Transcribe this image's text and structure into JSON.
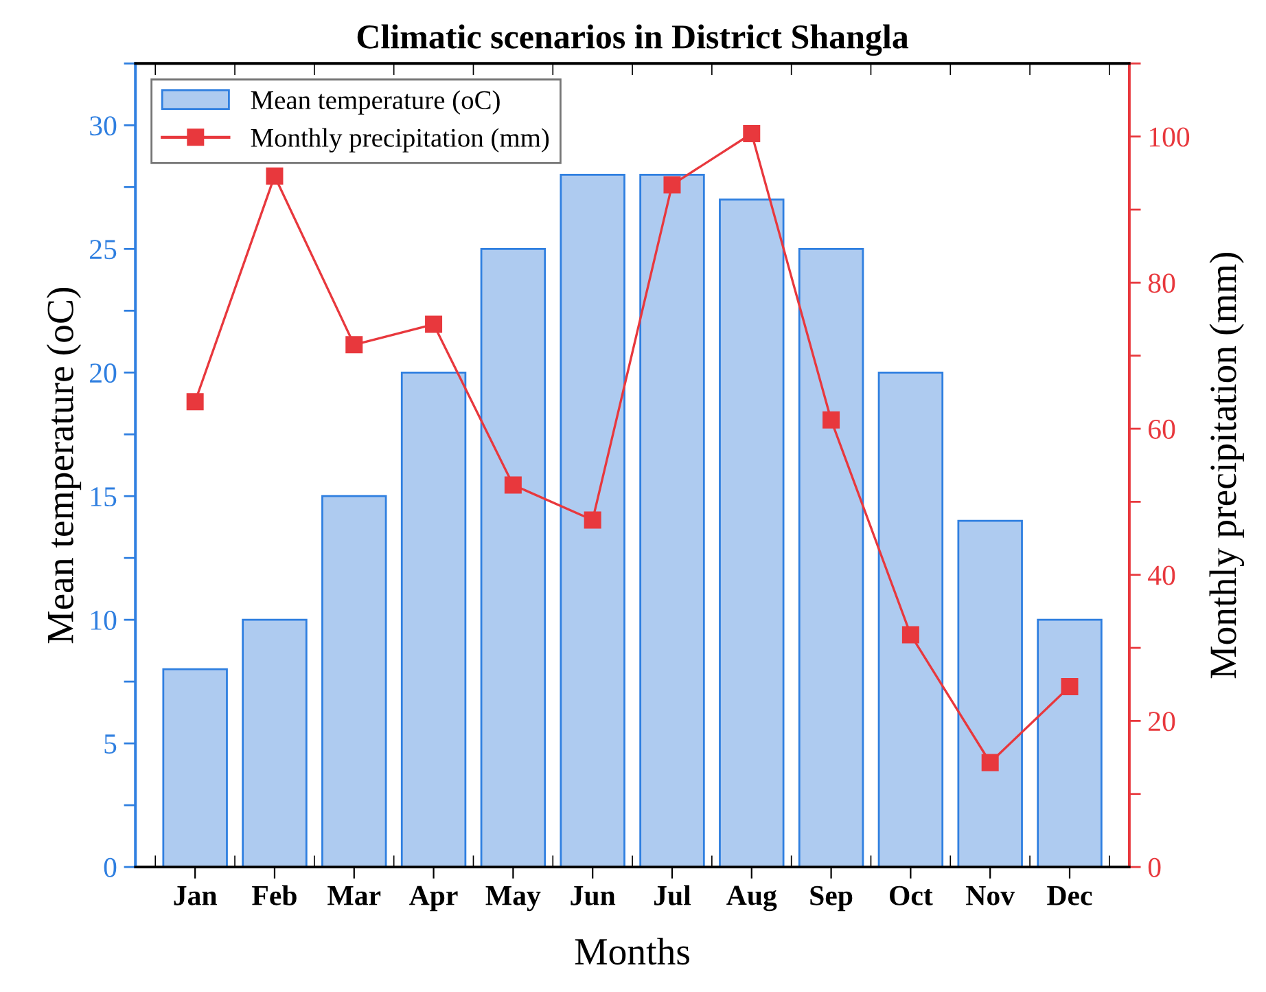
{
  "chart_data": {
    "type": "bar",
    "title": "Climatic scenarios in District Shangla",
    "xlabel": "Months",
    "ylabel": "Mean temperature (oC)",
    "y2label": "Monthly precipitation (mm)",
    "categories": [
      "Jan",
      "Feb",
      "Mar",
      "Apr",
      "May",
      "Jun",
      "Jul",
      "Aug",
      "Sep",
      "Oct",
      "Nov",
      "Dec"
    ],
    "series": [
      {
        "name": "Mean temperature (oC)",
        "color": "#aecbf0",
        "values": [
          8,
          10,
          15,
          20,
          25,
          28,
          28,
          27,
          25,
          20,
          14,
          10
        ]
      },
      {
        "name": "Monthly precipitation (mm)",
        "type": "line",
        "axis": "y2",
        "color": "#e8383d",
        "marker": "square",
        "values": [
          63.7,
          94.6,
          71.5,
          74.3,
          52.3,
          47.5,
          93.4,
          100.4,
          61.2,
          31.8,
          14.3,
          24.7
        ]
      }
    ],
    "ylim": [
      0,
      32.5
    ],
    "yticks": [
      0,
      {
        "value": 2.5,
        "label": null
      },
      5,
      {
        "value": 7.5,
        "label": null
      },
      10,
      {
        "value": 12.5,
        "label": null
      },
      15,
      {
        "value": 17.5,
        "label": null
      },
      20,
      {
        "value": 22.5,
        "label": null
      },
      25,
      {
        "value": 27.5,
        "label": null
      },
      30,
      {
        "value": 32.5,
        "label": null
      }
    ],
    "y2lim": [
      0,
      110
    ],
    "y2ticks": [
      0,
      {
        "value": 10,
        "label": null
      },
      20,
      {
        "value": 30,
        "label": null
      },
      40,
      {
        "value": 50,
        "label": null
      },
      60,
      {
        "value": 70,
        "label": null
      },
      80,
      {
        "value": 90,
        "label": null
      },
      100,
      {
        "value": 110,
        "label": null
      }
    ],
    "grid": false,
    "legend": "top left"
  }
}
